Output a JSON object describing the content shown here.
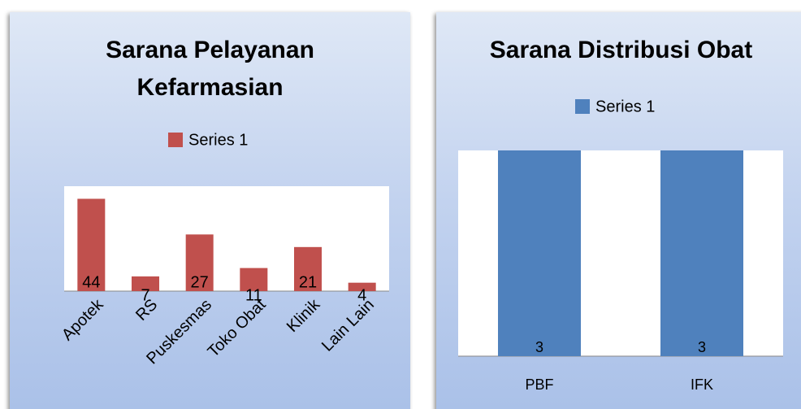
{
  "chart_data": [
    {
      "type": "bar",
      "title": "Sarana Pelayanan Kefarmasian",
      "categories": [
        "Apotek",
        "RS",
        "Puskesmas",
        "Toko Obat",
        "Klinik",
        "Lain Lain"
      ],
      "series": [
        {
          "name": "Series 1",
          "color": "#c0504d",
          "values": [
            44,
            7,
            27,
            11,
            21,
            4
          ]
        }
      ],
      "ylim": [
        0,
        50
      ]
    },
    {
      "type": "bar",
      "title": "Sarana Distribusi Obat",
      "categories": [
        "PBF",
        "IFK"
      ],
      "series": [
        {
          "name": "Series 1",
          "color": "#4f81bd",
          "values": [
            3,
            3
          ]
        }
      ],
      "ylim": [
        0,
        3
      ]
    }
  ]
}
